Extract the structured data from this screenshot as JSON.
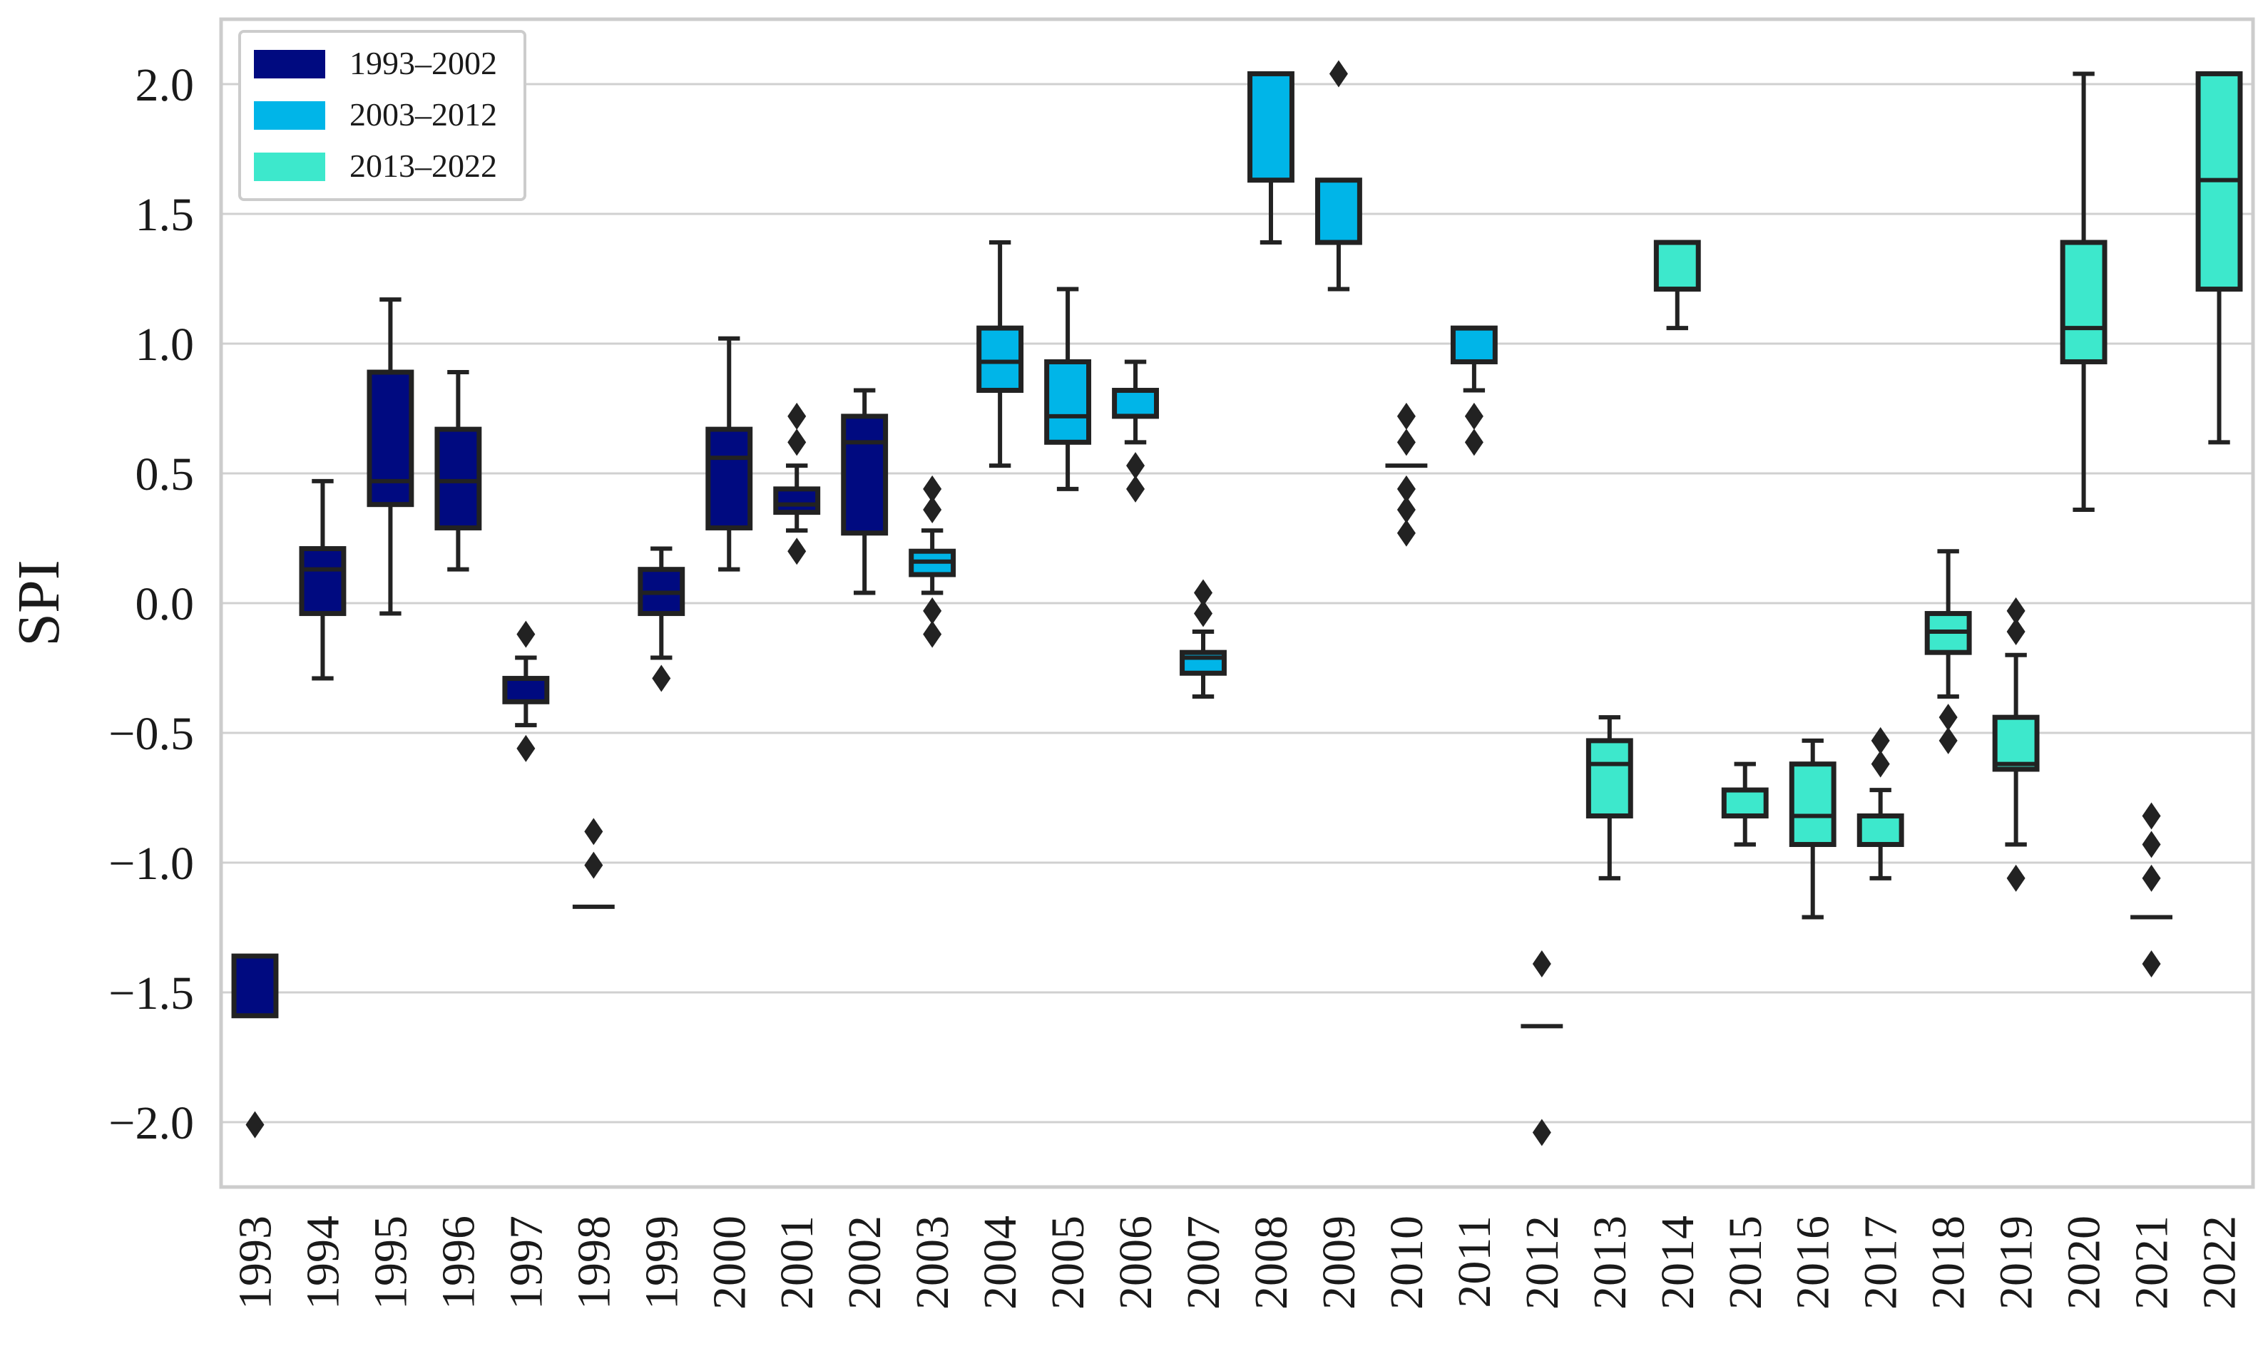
{
  "chart_data": {
    "type": "box",
    "title": "",
    "xlabel": "",
    "ylabel": "SPI",
    "ylim": [
      -2.25,
      2.25
    ],
    "yticks": [
      -2.0,
      -1.5,
      -1.0,
      -0.5,
      0.0,
      0.5,
      1.0,
      1.5,
      2.0
    ],
    "ytick_labels": [
      "−2.0",
      "−1.5",
      "−1.0",
      "−0.5",
      "0.0",
      "0.5",
      "1.0",
      "1.5",
      "2.0"
    ],
    "grid": "horizontal",
    "legend_position": "top-left",
    "colors": {
      "1993–2002": "#000a80",
      "2003–2012": "#00b5e8",
      "2013–2022": "#3de8cc"
    },
    "series": [
      {
        "name": "1993–2002",
        "color": "#000a80"
      },
      {
        "name": "2003–2012",
        "color": "#00b5e8"
      },
      {
        "name": "2013–2022",
        "color": "#3de8cc"
      }
    ],
    "boxes": [
      {
        "year": "1993",
        "group": 0,
        "q1": -1.59,
        "median": -1.59,
        "q3": -1.36,
        "whisker_low": -1.59,
        "whisker_high": -1.36,
        "fliers": [
          -2.01
        ]
      },
      {
        "year": "1994",
        "group": 0,
        "q1": -0.04,
        "median": 0.13,
        "q3": 0.21,
        "whisker_low": -0.29,
        "whisker_high": 0.47,
        "fliers": []
      },
      {
        "year": "1995",
        "group": 0,
        "q1": 0.38,
        "median": 0.47,
        "q3": 0.89,
        "whisker_low": -0.04,
        "whisker_high": 1.17,
        "fliers": []
      },
      {
        "year": "1996",
        "group": 0,
        "q1": 0.29,
        "median": 0.47,
        "q3": 0.67,
        "whisker_low": 0.13,
        "whisker_high": 0.89,
        "fliers": []
      },
      {
        "year": "1997",
        "group": 0,
        "q1": -0.38,
        "median": -0.38,
        "q3": -0.29,
        "whisker_low": -0.47,
        "whisker_high": -0.21,
        "fliers": [
          -0.12,
          -0.56
        ]
      },
      {
        "year": "1998",
        "group": 0,
        "q1": -1.17,
        "median": -1.17,
        "q3": -1.17,
        "whisker_low": -1.17,
        "whisker_high": -1.17,
        "fliers": [
          -0.88,
          -1.01
        ]
      },
      {
        "year": "1999",
        "group": 0,
        "q1": -0.04,
        "median": 0.04,
        "q3": 0.13,
        "whisker_low": -0.21,
        "whisker_high": 0.21,
        "fliers": [
          -0.29
        ]
      },
      {
        "year": "2000",
        "group": 0,
        "q1": 0.29,
        "median": 0.56,
        "q3": 0.67,
        "whisker_low": 0.13,
        "whisker_high": 1.02,
        "fliers": []
      },
      {
        "year": "2001",
        "group": 0,
        "q1": 0.35,
        "median": 0.38,
        "q3": 0.44,
        "whisker_low": 0.28,
        "whisker_high": 0.53,
        "fliers": [
          0.72,
          0.62,
          0.2
        ]
      },
      {
        "year": "2002",
        "group": 0,
        "q1": 0.27,
        "median": 0.62,
        "q3": 0.72,
        "whisker_low": 0.04,
        "whisker_high": 0.82,
        "fliers": []
      },
      {
        "year": "2003",
        "group": 1,
        "q1": 0.11,
        "median": 0.16,
        "q3": 0.2,
        "whisker_low": 0.04,
        "whisker_high": 0.28,
        "fliers": [
          0.44,
          0.36,
          -0.03,
          -0.12
        ]
      },
      {
        "year": "2004",
        "group": 1,
        "q1": 0.82,
        "median": 0.93,
        "q3": 1.06,
        "whisker_low": 0.53,
        "whisker_high": 1.39,
        "fliers": []
      },
      {
        "year": "2005",
        "group": 1,
        "q1": 0.62,
        "median": 0.72,
        "q3": 0.93,
        "whisker_low": 0.44,
        "whisker_high": 1.21,
        "fliers": []
      },
      {
        "year": "2006",
        "group": 1,
        "q1": 0.72,
        "median": 0.82,
        "q3": 0.82,
        "whisker_low": 0.62,
        "whisker_high": 0.93,
        "fliers": [
          0.53,
          0.44
        ]
      },
      {
        "year": "2007",
        "group": 1,
        "q1": -0.27,
        "median": -0.21,
        "q3": -0.19,
        "whisker_low": -0.36,
        "whisker_high": -0.11,
        "fliers": [
          0.04,
          -0.04
        ]
      },
      {
        "year": "2008",
        "group": 1,
        "q1": 1.63,
        "median": 2.04,
        "q3": 2.04,
        "whisker_low": 1.39,
        "whisker_high": 2.04,
        "fliers": []
      },
      {
        "year": "2009",
        "group": 1,
        "q1": 1.39,
        "median": 1.39,
        "q3": 1.63,
        "whisker_low": 1.21,
        "whisker_high": 1.63,
        "fliers": [
          2.04
        ]
      },
      {
        "year": "2010",
        "group": 1,
        "q1": 0.53,
        "median": 0.53,
        "q3": 0.53,
        "whisker_low": 0.53,
        "whisker_high": 0.53,
        "fliers": [
          0.72,
          0.62,
          0.44,
          0.36,
          0.27
        ]
      },
      {
        "year": "2011",
        "group": 1,
        "q1": 0.93,
        "median": 1.06,
        "q3": 1.06,
        "whisker_low": 0.82,
        "whisker_high": 1.06,
        "fliers": [
          0.72,
          0.62
        ]
      },
      {
        "year": "2012",
        "group": 1,
        "q1": -1.63,
        "median": -1.63,
        "q3": -1.63,
        "whisker_low": -1.63,
        "whisker_high": -1.63,
        "fliers": [
          -1.39,
          -2.04
        ]
      },
      {
        "year": "2013",
        "group": 2,
        "q1": -0.82,
        "median": -0.62,
        "q3": -0.53,
        "whisker_low": -1.06,
        "whisker_high": -0.44,
        "fliers": []
      },
      {
        "year": "2014",
        "group": 2,
        "q1": 1.21,
        "median": 1.39,
        "q3": 1.39,
        "whisker_low": 1.06,
        "whisker_high": 1.39,
        "fliers": []
      },
      {
        "year": "2015",
        "group": 2,
        "q1": -0.82,
        "median": -0.72,
        "q3": -0.72,
        "whisker_low": -0.93,
        "whisker_high": -0.62,
        "fliers": []
      },
      {
        "year": "2016",
        "group": 2,
        "q1": -0.93,
        "median": -0.82,
        "q3": -0.62,
        "whisker_low": -1.21,
        "whisker_high": -0.53,
        "fliers": []
      },
      {
        "year": "2017",
        "group": 2,
        "q1": -0.93,
        "median": -0.82,
        "q3": -0.82,
        "whisker_low": -1.06,
        "whisker_high": -0.72,
        "fliers": [
          -0.53,
          -0.62
        ]
      },
      {
        "year": "2018",
        "group": 2,
        "q1": -0.19,
        "median": -0.11,
        "q3": -0.04,
        "whisker_low": -0.36,
        "whisker_high": 0.2,
        "fliers": [
          -0.44,
          -0.53
        ]
      },
      {
        "year": "2019",
        "group": 2,
        "q1": -0.64,
        "median": -0.62,
        "q3": -0.44,
        "whisker_low": -0.93,
        "whisker_high": -0.2,
        "fliers": [
          -0.03,
          -0.11,
          -1.06
        ]
      },
      {
        "year": "2020",
        "group": 2,
        "q1": 0.93,
        "median": 1.06,
        "q3": 1.39,
        "whisker_low": 0.36,
        "whisker_high": 2.04,
        "fliers": []
      },
      {
        "year": "2021",
        "group": 2,
        "q1": -1.21,
        "median": -1.21,
        "q3": -1.21,
        "whisker_low": -1.21,
        "whisker_high": -1.21,
        "fliers": [
          -0.82,
          -0.93,
          -1.06,
          -1.39
        ]
      },
      {
        "year": "2022",
        "group": 2,
        "q1": 1.21,
        "median": 1.63,
        "q3": 2.04,
        "whisker_low": 0.62,
        "whisker_high": 2.04,
        "fliers": []
      }
    ]
  }
}
